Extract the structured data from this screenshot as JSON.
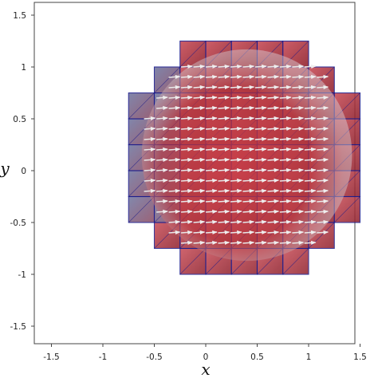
{
  "chart_data": {
    "type": "vector-field-mesh",
    "xlabel": "x",
    "ylabel": "y",
    "xlim": [
      -1.65,
      1.65
    ],
    "ylim": [
      -1.65,
      1.65
    ],
    "xticks": [
      -1.5,
      -1,
      -0.5,
      0,
      0.5,
      1,
      1.5
    ],
    "yticks": [
      -1.5,
      -1,
      -0.5,
      0,
      0.5,
      1,
      1.5
    ],
    "xtick_labels": [
      "-1.5",
      "-1",
      "-0.5",
      "0",
      "0.5",
      "1",
      "1.5"
    ],
    "ytick_labels": [
      "-1.5",
      "-1",
      "-0.5",
      "0",
      "0.5",
      "1",
      "1.5"
    ],
    "grid": false,
    "sphere": {
      "center": [
        0.35,
        0.1
      ],
      "radius": 1.1
    },
    "mesh": {
      "cell_size": 0.25,
      "edge_color": "#1a1a8a"
    },
    "arrow_direction": "+x",
    "colors": {
      "dark_red": "#7a1420",
      "mid_red": "#b8323a",
      "light_red": "#d65a5f",
      "blue_gray": "#5f6790",
      "arrow": "#e8e8e8"
    }
  }
}
